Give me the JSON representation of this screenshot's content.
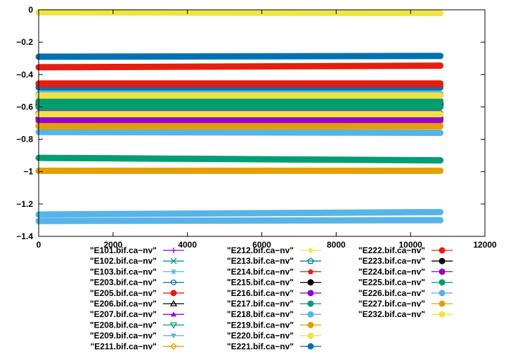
{
  "chart_data": {
    "type": "line",
    "title": "",
    "xlabel": "",
    "ylabel": "",
    "xlim": [
      0,
      12000
    ],
    "ylim": [
      -1.4,
      0
    ],
    "x_ticks": [
      "0",
      "2000",
      "4000",
      "6000",
      "8000",
      "10000",
      "12000"
    ],
    "y_ticks": [
      "0",
      "−0.2",
      "−0.4",
      "−0.6",
      "−0.8",
      "−1",
      "−1.2",
      "−1.4"
    ],
    "grid": false,
    "legend_position": "bottom",
    "x_start": 0,
    "x_end": 10800,
    "series": [
      {
        "name": "\"E101.bif.ca−nv\"",
        "color": "#9400d3",
        "marker": "plus",
        "y_start": -0.64,
        "y_end": -0.64
      },
      {
        "name": "\"E102.bif.ca−nv\"",
        "color": "#009e73",
        "marker": "cross",
        "y_start": -0.59,
        "y_end": -0.59
      },
      {
        "name": "\"E103.bif.ca−nv\"",
        "color": "#56b4e9",
        "marker": "star",
        "y_start": -0.52,
        "y_end": -0.52
      },
      {
        "name": "\"E203.bif.ca−nv\"",
        "color": "#0072b2",
        "marker": "circle-open",
        "y_start": -0.48,
        "y_end": -0.48
      },
      {
        "name": "\"E205.bif.ca−nv\"",
        "color": "#e51e10",
        "marker": "circle",
        "y_start": -0.46,
        "y_end": -0.46
      },
      {
        "name": "\"E206.bif.ca−nv\"",
        "color": "#000000",
        "marker": "triangle-open",
        "y_start": -0.585,
        "y_end": -0.585
      },
      {
        "name": "\"E207.bif.ca−nv\"",
        "color": "#9400d3",
        "marker": "triangle",
        "y_start": -0.67,
        "y_end": -0.67
      },
      {
        "name": "\"E208.bif.ca−nv\"",
        "color": "#009e73",
        "marker": "triangle-down-open",
        "y_start": -0.915,
        "y_end": -0.93
      },
      {
        "name": "\"E209.bif.ca−nv\"",
        "color": "#56b4e9",
        "marker": "triangle-down",
        "y_start": -1.265,
        "y_end": -1.25
      },
      {
        "name": "\"E211.bif.ca−nv\"",
        "color": "#e69f00",
        "marker": "diamond-open",
        "y_start": -0.69,
        "y_end": -0.69
      },
      {
        "name": "\"E212.bif.ca−nv\"",
        "color": "#f0e442",
        "marker": "diamond",
        "y_start": -0.015,
        "y_end": -0.02
      },
      {
        "name": "\"E213.bif.ca−nv\"",
        "color": "#0072b2",
        "marker": "pentagon-open",
        "y_start": -0.565,
        "y_end": -0.565
      },
      {
        "name": "\"E214.bif.ca−nv\"",
        "color": "#e51e10",
        "marker": "pentagon",
        "y_start": -0.355,
        "y_end": -0.345
      },
      {
        "name": "\"E215.bif.ca−nv\"",
        "color": "#000000",
        "marker": "circle",
        "y_start": -0.58,
        "y_end": -0.575
      },
      {
        "name": "\"E216.bif.ca−nv\"",
        "color": "#9400d3",
        "marker": "circle",
        "y_start": -0.68,
        "y_end": -0.68
      },
      {
        "name": "\"E217.bif.ca−nv\"",
        "color": "#009e73",
        "marker": "circle",
        "y_start": -0.57,
        "y_end": -0.57
      },
      {
        "name": "\"E218.bif.ca−nv\"",
        "color": "#56b4e9",
        "marker": "circle",
        "y_start": -0.755,
        "y_end": -0.76
      },
      {
        "name": "\"E219.bif.ca−nv\"",
        "color": "#e69f00",
        "marker": "circle",
        "y_start": -0.72,
        "y_end": -0.72
      },
      {
        "name": "\"E220.bif.ca−nv\"",
        "color": "#f0e442",
        "marker": "circle",
        "y_start": -0.53,
        "y_end": -0.53
      },
      {
        "name": "\"E221.bif.ca−nv\"",
        "color": "#0072b2",
        "marker": "circle",
        "y_start": -0.29,
        "y_end": -0.285
      },
      {
        "name": "\"E222.bif.ca−nv\"",
        "color": "#e51e10",
        "marker": "circle",
        "y_start": -0.455,
        "y_end": -0.455
      },
      {
        "name": "\"E223.bif.ca−nv\"",
        "color": "#000000",
        "marker": "circle",
        "y_start": -0.6,
        "y_end": -0.6
      },
      {
        "name": "\"E224.bif.ca−nv\"",
        "color": "#9400d3",
        "marker": "circle",
        "y_start": -0.675,
        "y_end": -0.675
      },
      {
        "name": "\"E225.bif.ca−nv\"",
        "color": "#009e73",
        "marker": "circle",
        "y_start": -0.6,
        "y_end": -0.6
      },
      {
        "name": "\"E226.bif.ca−nv\"",
        "color": "#56b4e9",
        "marker": "circle",
        "y_start": -1.305,
        "y_end": -1.3
      },
      {
        "name": "\"E227.bif.ca−nv\"",
        "color": "#e69f00",
        "marker": "circle",
        "y_start": -0.995,
        "y_end": -0.995
      },
      {
        "name": "\"E232.bif.ca−nv\"",
        "color": "#f0e442",
        "marker": "circle",
        "y_start": -0.645,
        "y_end": -0.645
      }
    ]
  }
}
